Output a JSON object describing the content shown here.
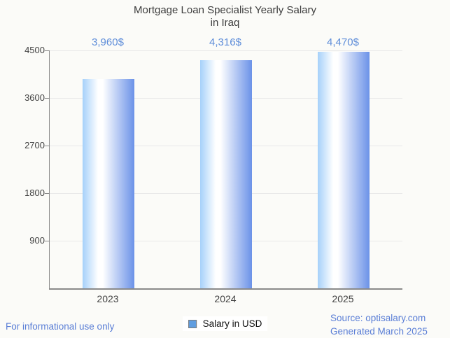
{
  "title": {
    "line1": "Mortgage Loan Specialist Yearly Salary",
    "line2": "in Iraq"
  },
  "legend": {
    "label": "Salary in USD"
  },
  "footer": {
    "left": "For informational use only",
    "source": "Source: optisalary.com",
    "generated": "Generated March 2025"
  },
  "chart_data": {
    "type": "bar",
    "title": "Mortgage Loan Specialist Yearly Salary in Iraq",
    "categories": [
      "2023",
      "2024",
      "2025"
    ],
    "series": [
      {
        "name": "Salary in USD",
        "values": [
          3960,
          4316,
          4470
        ]
      }
    ],
    "value_labels": [
      "3,960$",
      "4,316$",
      "4,470$"
    ],
    "xlabel": "",
    "ylabel": "",
    "ylim": [
      0,
      4500
    ],
    "yticks": [
      900,
      1800,
      2700,
      3600,
      4500
    ],
    "grid": true,
    "legend_position": "bottom"
  },
  "colors": {
    "background": "#fbfbf8",
    "title_text": "#3d3d3d",
    "axis_line": "#8a8a8a",
    "tick_text": "#424242",
    "gridline": "#e9e9e9",
    "value_label": "#5e8dd9",
    "footer_link": "#5a7ed6",
    "bar_gradient_left": "#a6d1fa",
    "bar_gradient_mid": "#ffffff",
    "bar_gradient_right": "#6b92e8",
    "legend_marker_fill": "#5f9de0",
    "legend_marker_border": "#7a7a7a"
  }
}
